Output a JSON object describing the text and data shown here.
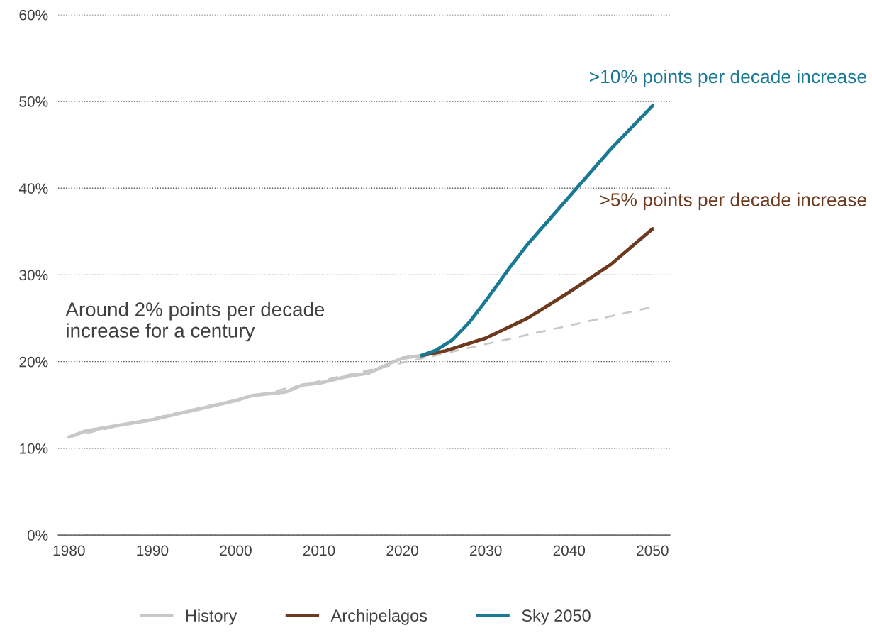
{
  "chart_data": {
    "type": "line",
    "xlim": [
      1978.7,
      2052.1
    ],
    "xticks": [
      1980,
      1990,
      2000,
      2010,
      2020,
      2030,
      2040,
      2050
    ],
    "ylim": [
      0,
      60
    ],
    "yticks": [
      {
        "value": 0,
        "label": "0%"
      },
      {
        "value": 10,
        "label": "10%"
      },
      {
        "value": 20,
        "label": "20%"
      },
      {
        "value": 30,
        "label": "30%"
      },
      {
        "value": 40,
        "label": "40%"
      },
      {
        "value": 50,
        "label": "50%"
      },
      {
        "value": 60,
        "label": "60%"
      }
    ],
    "grid": "y",
    "legend": "bottom",
    "series": [
      {
        "color": "#c8c8c8",
        "line_style": "dashed",
        "x": [
          1980,
          2050
        ],
        "values": [
          11.3,
          26.3
        ]
      },
      {
        "name": "History",
        "color": "#c8c8c8",
        "x": [
          1980,
          1982,
          1985,
          1990,
          1995,
          2000,
          2002,
          2004,
          2006,
          2008,
          2010,
          2013,
          2016,
          2019,
          2020,
          2022.3
        ],
        "values": [
          11.3,
          12.0,
          12.5,
          13.3,
          14.4,
          15.5,
          16.1,
          16.3,
          16.5,
          17.3,
          17.5,
          18.2,
          18.7,
          20.0,
          20.4,
          20.7
        ]
      },
      {
        "name": "Archipelagos",
        "color": "#6e3a1f",
        "x": [
          2022.3,
          2025,
          2030,
          2035,
          2040,
          2045,
          2050
        ],
        "values": [
          20.7,
          21.2,
          22.7,
          25.0,
          28.0,
          31.2,
          35.3
        ]
      },
      {
        "name": "Sky 2050",
        "color": "#1a7a96",
        "x": [
          2022.3,
          2024,
          2026,
          2028,
          2030,
          2033,
          2035,
          2040,
          2045,
          2050
        ],
        "values": [
          20.7,
          21.3,
          22.5,
          24.5,
          27.0,
          31.0,
          33.5,
          39.0,
          44.5,
          49.5
        ]
      }
    ],
    "annotations": [
      "Around 2% points per decade\nincrease for a century",
      {
        "text": ">10% points per decade increase",
        "x": 2050,
        "y": 49.5
      },
      {
        "text": ">5% points per decade increase",
        "x": 2050,
        "y": 35.3
      }
    ]
  }
}
